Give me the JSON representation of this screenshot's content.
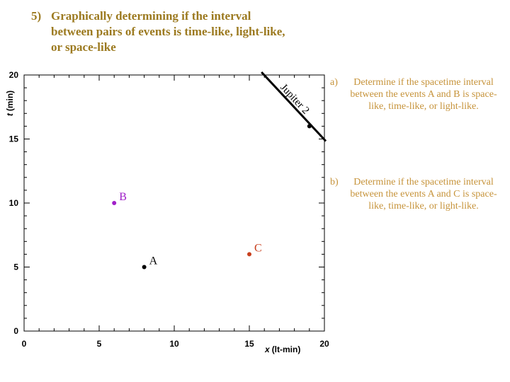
{
  "heading": {
    "number": "5)",
    "text": "Graphically determining if the interval between pairs of events is time-like, light-like, or space-like"
  },
  "questions": [
    {
      "label": "a)",
      "text": "Determine if the spacetime interval between the events A and B is space-like, time-like, or light-like."
    },
    {
      "label": "b)",
      "text": "Determine if the spacetime interval between the events A and C is space-like, time-like, or light-like."
    }
  ],
  "chart_data": {
    "type": "scatter",
    "xlabel_var": "x",
    "xlabel_unit": "(lt-min)",
    "ylabel_var": "t",
    "ylabel_unit": "(min)",
    "xlim": [
      0,
      20
    ],
    "ylim": [
      0,
      20
    ],
    "xticks": [
      0,
      5,
      10,
      15,
      20
    ],
    "yticks": [
      0,
      5,
      10,
      15,
      20
    ],
    "grid": false,
    "points": [
      {
        "label": "A",
        "x": 8,
        "y": 5,
        "color": "#000000"
      },
      {
        "label": "B",
        "x": 6,
        "y": 10,
        "color": "#a020c8"
      },
      {
        "label": "C",
        "x": 15,
        "y": 6,
        "color": "#c8401e"
      }
    ],
    "worldline": {
      "label": "Jupiter 2",
      "x": [
        16,
        20
      ],
      "y": [
        20,
        15
      ]
    }
  }
}
